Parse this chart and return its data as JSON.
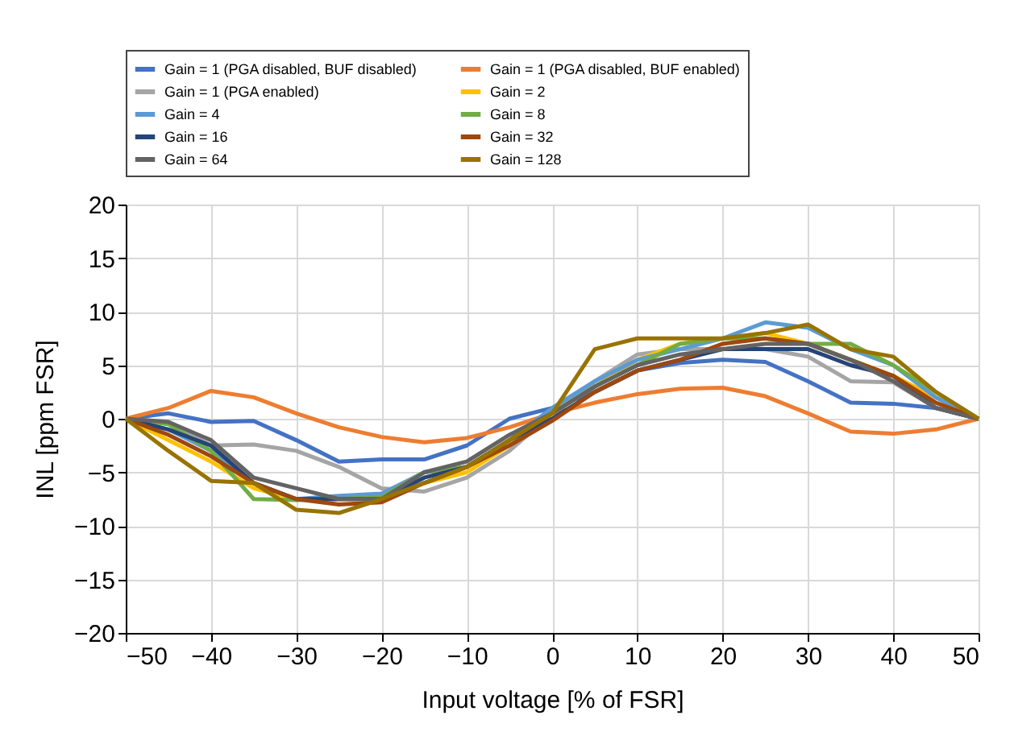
{
  "chart_data": {
    "type": "line",
    "xlabel": "Input voltage [% of FSR]",
    "ylabel": "INL [ppm FSR]",
    "x": [
      -50,
      -45,
      -40,
      -35,
      -30,
      -25,
      -20,
      -15,
      -10,
      -5,
      0,
      5,
      10,
      15,
      20,
      25,
      30,
      35,
      40,
      45,
      50
    ],
    "xlim": [
      -50,
      50
    ],
    "xticks": [
      -50,
      -40,
      -30,
      -20,
      -10,
      0,
      10,
      20,
      30,
      40,
      50
    ],
    "ylim": [
      -20,
      20
    ],
    "yticks": [
      -20,
      -15,
      -10,
      -5,
      0,
      5,
      10,
      15,
      20
    ],
    "grid": true,
    "legend": "top",
    "marker": "none",
    "line_style": "solid",
    "series": [
      {
        "name": "Gain = 1 (PGA disabled, BUF disabled)",
        "color": "#4472c4",
        "values": [
          0,
          0.5,
          -0.3,
          -0.2,
          -2,
          -4,
          -3.8,
          -3.8,
          -2.5,
          0,
          1,
          2.5,
          4.5,
          5.2,
          5.5,
          5.3,
          3.5,
          1.5,
          1.4,
          1,
          0
        ]
      },
      {
        "name": "Gain = 1 (PGA disabled, BUF enabled)",
        "color": "#ed7d31",
        "values": [
          0,
          1,
          2.6,
          2,
          0.5,
          -0.8,
          -1.7,
          -2.2,
          -1.8,
          -0.8,
          0.5,
          1.5,
          2.3,
          2.8,
          2.9,
          2.1,
          0.5,
          -1.2,
          -1.4,
          -1,
          0
        ]
      },
      {
        "name": "Gain = 1 (PGA enabled)",
        "color": "#a5a5a5",
        "values": [
          0,
          -0.3,
          -2.5,
          -2.4,
          -3,
          -4.5,
          -6.5,
          -6.8,
          -5.5,
          -3,
          0.5,
          3.5,
          6,
          6.5,
          6.5,
          6.5,
          5.8,
          3.5,
          3.4,
          1,
          0
        ]
      },
      {
        "name": "Gain = 2",
        "color": "#ffc000",
        "values": [
          0,
          -2,
          -4,
          -6.5,
          -7.5,
          -7.5,
          -7.5,
          -6,
          -5,
          -2.5,
          0.5,
          3,
          5.5,
          7,
          7.5,
          8,
          7,
          5.5,
          4,
          2,
          0
        ]
      },
      {
        "name": "Gain = 4",
        "color": "#5b9bd5",
        "values": [
          0,
          -1,
          -3,
          -6,
          -7.5,
          -7.2,
          -7,
          -5,
          -4.5,
          -2,
          1,
          3.5,
          5.5,
          6.5,
          7.5,
          9,
          8.5,
          6.5,
          5,
          2,
          0
        ]
      },
      {
        "name": "Gain = 8",
        "color": "#70ad47",
        "values": [
          0,
          -0.5,
          -3,
          -7.5,
          -7.6,
          -7.5,
          -7.3,
          -5,
          -4.5,
          -2,
          0.5,
          3,
          5,
          7,
          7.5,
          7.5,
          7,
          7,
          5,
          2.5,
          0
        ]
      },
      {
        "name": "Gain = 16",
        "color": "#264478",
        "values": [
          0,
          -1,
          -2.5,
          -6,
          -7.5,
          -7.5,
          -7.5,
          -5.5,
          -4.5,
          -2,
          0,
          2.5,
          4.5,
          5.5,
          6.5,
          6.5,
          6.5,
          5,
          4,
          1,
          0
        ]
      },
      {
        "name": "Gain = 32",
        "color": "#9e480e",
        "values": [
          0,
          -1.5,
          -3.5,
          -6,
          -7.5,
          -8,
          -7.8,
          -6,
          -4.5,
          -2.5,
          -0.2,
          2.5,
          4.5,
          5.5,
          7,
          7.5,
          7,
          5.5,
          4,
          1.5,
          0
        ]
      },
      {
        "name": "Gain = 64",
        "color": "#636363",
        "values": [
          0,
          -0.3,
          -2,
          -5.5,
          -6.5,
          -7.5,
          -7.5,
          -5,
          -4,
          -1.5,
          0.5,
          3,
          5,
          6,
          6.5,
          7,
          7,
          5.5,
          3.5,
          1,
          0
        ]
      },
      {
        "name": "Gain = 128",
        "color": "#997300",
        "values": [
          0,
          -3,
          -5.8,
          -6,
          -8.5,
          -8.8,
          -7.5,
          -6,
          -4.5,
          -2,
          0.5,
          6.5,
          7.5,
          7.5,
          7.5,
          8,
          8.8,
          6.5,
          5.8,
          2.5,
          0
        ]
      }
    ]
  }
}
